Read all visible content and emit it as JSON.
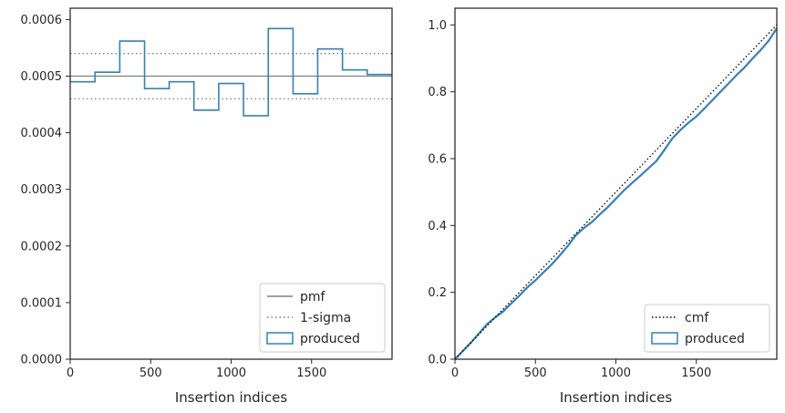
{
  "chart_data": [
    {
      "type": "line",
      "xlabel": "Insertion indices",
      "ylabel": "",
      "xlim": [
        0,
        2000
      ],
      "ylim": [
        0,
        0.00062
      ],
      "x_ticks": [
        0,
        500,
        1000,
        1500
      ],
      "x_tick_labels": [
        "0",
        "500",
        "1000",
        "1500"
      ],
      "y_ticks": [
        0,
        0.0001,
        0.0002,
        0.0003,
        0.0004,
        0.0005,
        0.0006
      ],
      "y_tick_labels": [
        "0.0000",
        "0.0001",
        "0.0002",
        "0.0003",
        "0.0004",
        "0.0005",
        "0.0006"
      ],
      "grid": false,
      "legend_position": "bottom-right",
      "series": [
        {
          "name": "pmf",
          "style": "solid",
          "color": "#808080",
          "x": [
            0,
            2000
          ],
          "y": [
            0.0005,
            0.0005
          ]
        },
        {
          "name": "1-sigma",
          "style": "dotted",
          "color": "#808080",
          "lines": [
            0.00054,
            0.00046
          ]
        },
        {
          "name": "produced",
          "style": "step",
          "color": "#3182bd",
          "bin_edges": [
            0,
            154,
            308,
            462,
            615,
            769,
            923,
            1077,
            1231,
            1385,
            1538,
            1692,
            1846,
            2000
          ],
          "values": [
            0.00049,
            0.000507,
            0.000562,
            0.000478,
            0.00049,
            0.00044,
            0.000487,
            0.00043,
            0.000584,
            0.000469,
            0.000548,
            0.000511,
            0.000503
          ]
        }
      ]
    },
    {
      "type": "line",
      "xlabel": "Insertion indices",
      "ylabel": "",
      "xlim": [
        0,
        2000
      ],
      "ylim": [
        0,
        1.05
      ],
      "x_ticks": [
        0,
        500,
        1000,
        1500
      ],
      "x_tick_labels": [
        "0",
        "500",
        "1000",
        "1500"
      ],
      "y_ticks": [
        0,
        0.2,
        0.4,
        0.6,
        0.8,
        1.0
      ],
      "y_tick_labels": [
        "0.0",
        "0.2",
        "0.4",
        "0.6",
        "0.8",
        "1.0"
      ],
      "grid": false,
      "legend_position": "bottom-right",
      "series": [
        {
          "name": "cmf",
          "style": "dotted",
          "color": "#000000",
          "x": [
            0,
            2000
          ],
          "y": [
            0,
            1.0
          ]
        },
        {
          "name": "produced",
          "style": "solid",
          "color": "#3182bd",
          "x": [
            0,
            100,
            200,
            250,
            300,
            350,
            400,
            450,
            500,
            550,
            600,
            650,
            700,
            750,
            800,
            850,
            900,
            950,
            1000,
            1050,
            1100,
            1150,
            1200,
            1250,
            1300,
            1350,
            1400,
            1450,
            1500,
            1550,
            1600,
            1650,
            1700,
            1750,
            1800,
            1850,
            1900,
            1950,
            2000
          ],
          "y": [
            0,
            0.05,
            0.105,
            0.125,
            0.143,
            0.167,
            0.19,
            0.215,
            0.236,
            0.26,
            0.283,
            0.31,
            0.338,
            0.37,
            0.392,
            0.41,
            0.433,
            0.455,
            0.48,
            0.505,
            0.527,
            0.548,
            0.57,
            0.592,
            0.625,
            0.66,
            0.685,
            0.707,
            0.726,
            0.75,
            0.775,
            0.8,
            0.825,
            0.85,
            0.873,
            0.9,
            0.925,
            0.953,
            0.99
          ]
        }
      ]
    }
  ]
}
